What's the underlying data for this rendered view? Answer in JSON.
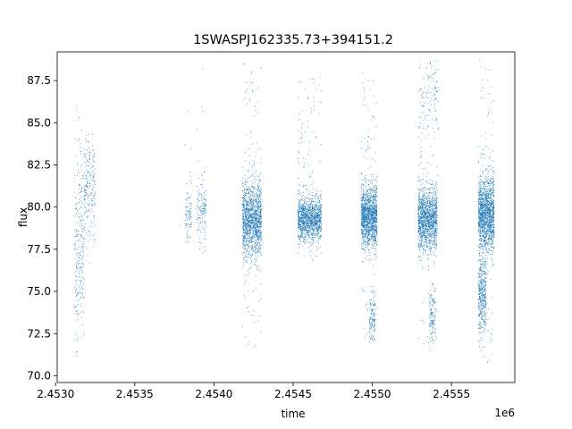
{
  "chart_data": {
    "type": "scatter",
    "title": "1SWASPJ162335.73+394151.2",
    "xlabel": "time",
    "ylabel": "flux",
    "x_offset_label": "1e6",
    "xlim": [
      2.45301,
      2.4559
    ],
    "ylim": [
      69.6,
      89.2
    ],
    "xticks": [
      2.453,
      2.4535,
      2.454,
      2.4545,
      2.455,
      2.4555
    ],
    "xtick_labels": [
      "2.4530",
      "2.4535",
      "2.4540",
      "2.4545",
      "2.4550",
      "2.4555"
    ],
    "yticks": [
      70.0,
      72.5,
      75.0,
      77.5,
      80.0,
      82.5,
      85.0,
      87.5
    ],
    "ytick_labels": [
      "70.0",
      "72.5",
      "75.0",
      "77.5",
      "80.0",
      "82.5",
      "85.0",
      "87.5"
    ],
    "grid": false,
    "marker_color": "#1f77b4",
    "clusters": [
      {
        "x_start": 2.45312,
        "x_end": 2.45318,
        "y_center": 77.5,
        "y_spread": 3.0,
        "y_min": 70.8,
        "y_max": 86.5,
        "n": 260
      },
      {
        "x_start": 2.45318,
        "x_end": 2.45325,
        "y_center": 81.0,
        "y_spread": 1.6,
        "y_min": 76.5,
        "y_max": 84.8,
        "n": 220
      },
      {
        "x_start": 2.45382,
        "x_end": 2.45386,
        "y_center": 79.5,
        "y_spread": 0.8,
        "y_min": 77.5,
        "y_max": 86.0,
        "n": 90
      },
      {
        "x_start": 2.45389,
        "x_end": 2.45395,
        "y_center": 79.8,
        "y_spread": 1.2,
        "y_min": 74.5,
        "y_max": 88.8,
        "n": 140
      },
      {
        "x_start": 2.45418,
        "x_end": 2.4543,
        "y_center": 79.2,
        "y_spread": 1.1,
        "y_min": 71.5,
        "y_max": 88.5,
        "n": 1400
      },
      {
        "x_start": 2.45453,
        "x_end": 2.45468,
        "y_center": 79.3,
        "y_spread": 0.6,
        "y_min": 76.5,
        "y_max": 87.7,
        "n": 1300
      },
      {
        "x_start": 2.45493,
        "x_end": 2.45503,
        "y_center": 79.4,
        "y_spread": 0.9,
        "y_min": 72.0,
        "y_max": 88.0,
        "n": 1400
      },
      {
        "x_start": 2.45529,
        "x_end": 2.45541,
        "y_center": 79.3,
        "y_spread": 0.9,
        "y_min": 71.0,
        "y_max": 88.7,
        "n": 1400
      },
      {
        "x_start": 2.4553,
        "x_end": 2.45542,
        "y_center": 86.5,
        "y_spread": 1.0,
        "y_min": 84.0,
        "y_max": 88.7,
        "n": 100
      },
      {
        "x_start": 2.45567,
        "x_end": 2.45577,
        "y_center": 79.5,
        "y_spread": 1.1,
        "y_min": 70.6,
        "y_max": 88.7,
        "n": 1500
      },
      {
        "x_start": 2.45567,
        "x_end": 2.45572,
        "y_center": 75.0,
        "y_spread": 1.2,
        "y_min": 71.5,
        "y_max": 77.0,
        "n": 400
      },
      {
        "x_start": 2.45498,
        "x_end": 2.45502,
        "y_center": 73.5,
        "y_spread": 0.8,
        "y_min": 72.0,
        "y_max": 75.5,
        "n": 120
      },
      {
        "x_start": 2.45536,
        "x_end": 2.4554,
        "y_center": 73.5,
        "y_spread": 0.9,
        "y_min": 72.0,
        "y_max": 75.5,
        "n": 120
      }
    ]
  }
}
